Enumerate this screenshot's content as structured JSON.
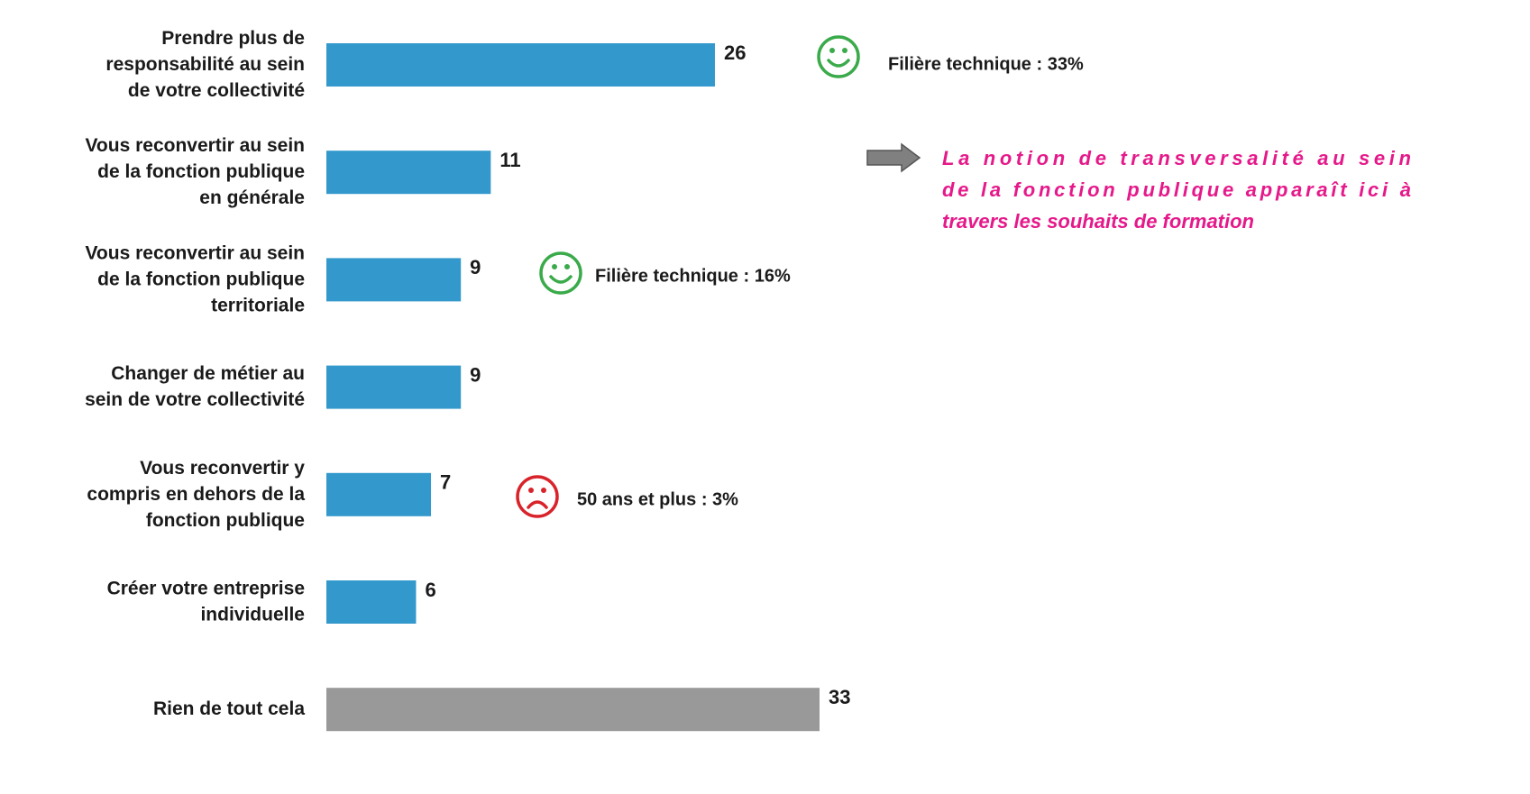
{
  "chart_data": {
    "type": "bar",
    "orientation": "horizontal",
    "categories": [
      "Prendre plus de\nresponsabilité au sein\nde votre collectivité",
      "Vous reconvertir au sein\nde la fonction publique\nen générale",
      "Vous reconvertir au sein\nde la fonction publique\nterritoriale",
      "Changer de métier au\nsein de votre collectivité",
      "Vous reconvertir y\ncompris en dehors de la\nfonction publique",
      "Créer votre entreprise\nindividuelle",
      "Rien de tout cela"
    ],
    "values": [
      26,
      11,
      9,
      9,
      7,
      6,
      33
    ],
    "colors": [
      "#3399cc",
      "#3399cc",
      "#3399cc",
      "#3399cc",
      "#3399cc",
      "#3399cc",
      "#999999"
    ],
    "annotations": [
      {
        "text": "Filière technique : 33%",
        "mood": "happy",
        "color": "#3aaa4a"
      },
      {
        "text": "Filière technique : 16%",
        "mood": "happy",
        "color": "#3aaa4a"
      },
      {
        "text": "50 ans et plus : 3%",
        "mood": "sad",
        "color": "#d9232a"
      }
    ],
    "note": "La notion de transversalité au sein\nde la fonction publique apparaît ici à\ntravers les souhaits de formation"
  }
}
